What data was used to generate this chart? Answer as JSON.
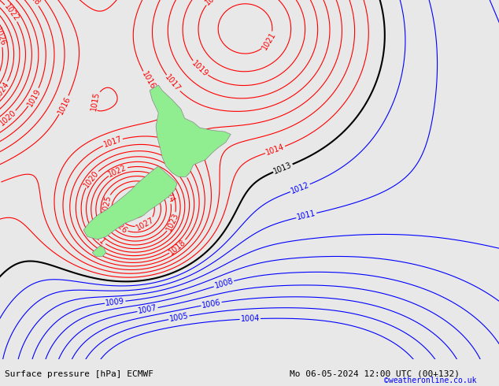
{
  "title_left": "Surface pressure [hPa] ECMWF",
  "title_right": "Mo 06-05-2024 12:00 UTC (00+132)",
  "copyright": "©weatheronline.co.uk",
  "bg_color": "#e8e8e8",
  "land_color": "#90ee90",
  "land_edge_color": "#888888",
  "red_color": "#ff0000",
  "blue_color": "#0000ff",
  "black_color": "#000000",
  "figsize": [
    6.34,
    4.9
  ],
  "dpi": 100,
  "lon_min": 160,
  "lon_max": 200,
  "lat_min": -55,
  "lat_max": -28,
  "font_size_bottom": 8,
  "font_size_labels": 7,
  "bottom_bar_height": 0.07
}
